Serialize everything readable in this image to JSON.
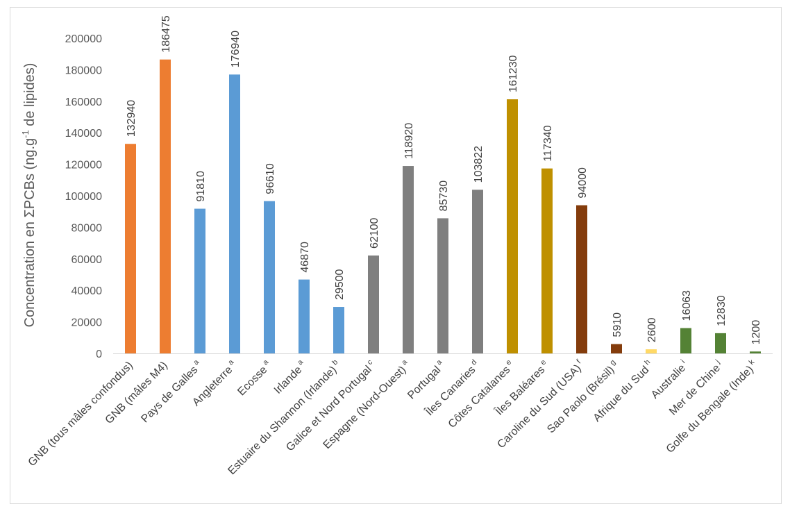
{
  "chart_data": {
    "type": "bar",
    "title": "",
    "xlabel": "",
    "ylabel": "Concentration en ΣPCBs (ng.g⁻¹ de lipides)",
    "ylabel_parts": {
      "before": "Concentration en ΣPCBs (ng.g",
      "sup": "-1",
      "after": " de lipides)"
    },
    "ylim": [
      0,
      200000
    ],
    "yticks": [
      0,
      20000,
      40000,
      60000,
      80000,
      100000,
      120000,
      140000,
      160000,
      180000,
      200000
    ],
    "grid": false,
    "categories": [
      {
        "label": "GNB (tous mâles confondus)",
        "sup": "",
        "value": 132940,
        "color": "#ed7d31"
      },
      {
        "label": "GNB (mâles M4)",
        "sup": "",
        "value": 186475,
        "color": "#ed7d31"
      },
      {
        "label": "Pays de Galles",
        "sup": "a",
        "value": 91810,
        "color": "#5b9bd5"
      },
      {
        "label": "Angleterre",
        "sup": "a",
        "value": 176940,
        "color": "#5b9bd5"
      },
      {
        "label": "Ecosse",
        "sup": "a",
        "value": 96610,
        "color": "#5b9bd5"
      },
      {
        "label": "Irlande",
        "sup": "a",
        "value": 46870,
        "color": "#5b9bd5"
      },
      {
        "label": "Estuaire du Shannon (Irlande)",
        "sup": "b",
        "value": 29500,
        "color": "#5b9bd5"
      },
      {
        "label": "Galice et Nord Portugal",
        "sup": "c",
        "value": 62100,
        "color": "#7f7f7f"
      },
      {
        "label": "Espagne (Nord-Ouest)",
        "sup": "a",
        "value": 118920,
        "color": "#7f7f7f"
      },
      {
        "label": "Portugal",
        "sup": "a",
        "value": 85730,
        "color": "#7f7f7f"
      },
      {
        "label": "Îles Canaries",
        "sup": "d",
        "value": 103822,
        "color": "#7f7f7f"
      },
      {
        "label": "Côtes Catalanes",
        "sup": "e",
        "value": 161230,
        "color": "#bf9000"
      },
      {
        "label": "Îles Baléares",
        "sup": "e",
        "value": 117340,
        "color": "#bf9000"
      },
      {
        "label": "Caroline du Sud (USA)",
        "sup": "f",
        "value": 94000,
        "color": "#843c0c"
      },
      {
        "label": "Sao Paolo (Brésil)",
        "sup": "g",
        "value": 5910,
        "color": "#843c0c"
      },
      {
        "label": "Afrique du Sud",
        "sup": "h",
        "value": 2600,
        "color": "#ffd966"
      },
      {
        "label": "Australie",
        "sup": "i",
        "value": 16063,
        "color": "#548235"
      },
      {
        "label": "Mer de Chine",
        "sup": "j",
        "value": 12830,
        "color": "#548235"
      },
      {
        "label": "Golfe du Bengale (Inde)",
        "sup": "k",
        "value": 1200,
        "color": "#548235"
      }
    ]
  }
}
